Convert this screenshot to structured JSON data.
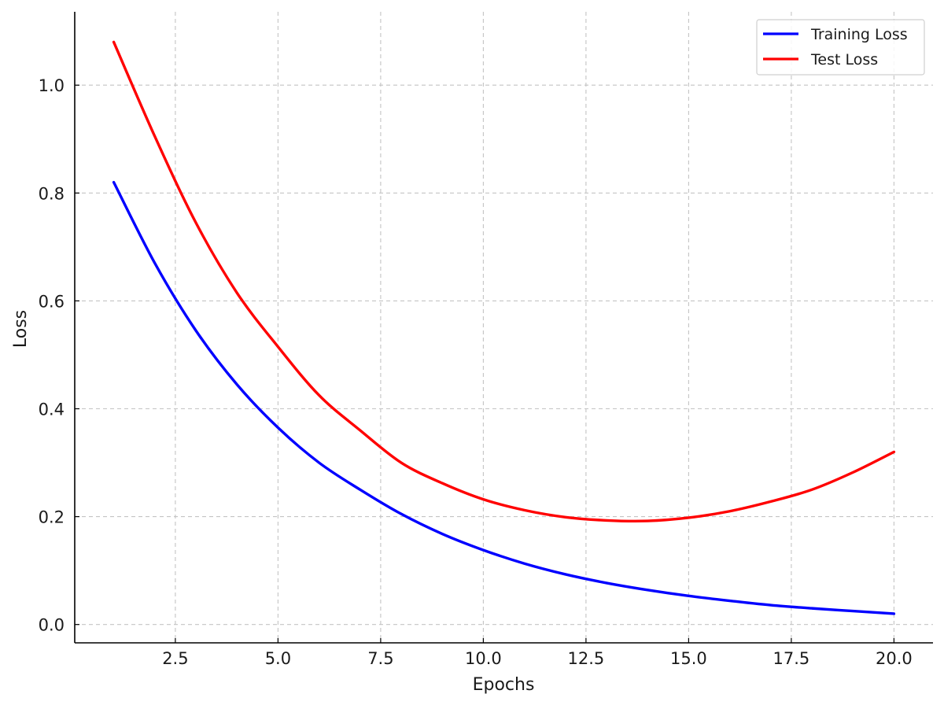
{
  "chart_data": {
    "type": "line",
    "title": "",
    "xlabel": "Epochs",
    "ylabel": "Loss",
    "xlim": [
      0.05,
      20.95
    ],
    "ylim": [
      -0.034,
      1.136
    ],
    "xticks": [
      2.5,
      5.0,
      7.5,
      10.0,
      12.5,
      15.0,
      17.5,
      20.0
    ],
    "xtick_labels": [
      "2.5",
      "5.0",
      "7.5",
      "10.0",
      "12.5",
      "15.0",
      "17.5",
      "20.0"
    ],
    "yticks": [
      0.0,
      0.2,
      0.4,
      0.6,
      0.8,
      1.0
    ],
    "ytick_labels": [
      "0.0",
      "0.2",
      "0.4",
      "0.6",
      "0.8",
      "1.0"
    ],
    "grid": true,
    "legend_position": "top-right",
    "x": [
      1,
      2,
      3,
      4,
      5,
      6,
      7,
      8,
      9,
      10,
      11,
      12,
      13,
      14,
      15,
      16,
      17,
      18,
      19,
      20
    ],
    "series": [
      {
        "name": "Training Loss",
        "color": "#0000ff",
        "values": [
          0.82,
          0.67,
          0.545,
          0.445,
          0.365,
          0.3,
          0.25,
          0.205,
          0.168,
          0.138,
          0.113,
          0.093,
          0.077,
          0.064,
          0.053,
          0.044,
          0.036,
          0.03,
          0.025,
          0.02
        ]
      },
      {
        "name": "Test Loss",
        "color": "#ff0000",
        "values": [
          1.08,
          0.905,
          0.745,
          0.615,
          0.515,
          0.425,
          0.36,
          0.3,
          0.262,
          0.232,
          0.212,
          0.199,
          0.193,
          0.192,
          0.198,
          0.21,
          0.228,
          0.25,
          0.282,
          0.32
        ]
      }
    ]
  }
}
